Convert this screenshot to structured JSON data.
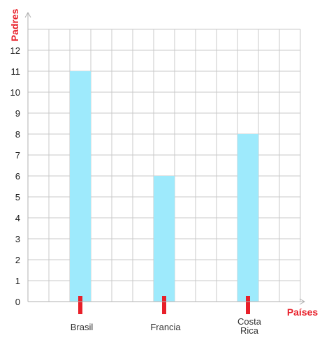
{
  "chart_data": {
    "type": "bar",
    "categories": [
      "Brasil",
      "Francia",
      "Costa Rica"
    ],
    "values": [
      11,
      6,
      8
    ],
    "title": "",
    "xlabel": "Países",
    "ylabel": "Padres",
    "ylim": [
      0,
      13
    ],
    "yticks": [
      0,
      1,
      2,
      3,
      4,
      5,
      6,
      7,
      8,
      9,
      10,
      11,
      12
    ],
    "grid": true,
    "colors": {
      "bar": "#9eeafc",
      "marker": "#e8202a",
      "grid": "#c8c8c8",
      "axis_label": "#e8202a"
    }
  }
}
